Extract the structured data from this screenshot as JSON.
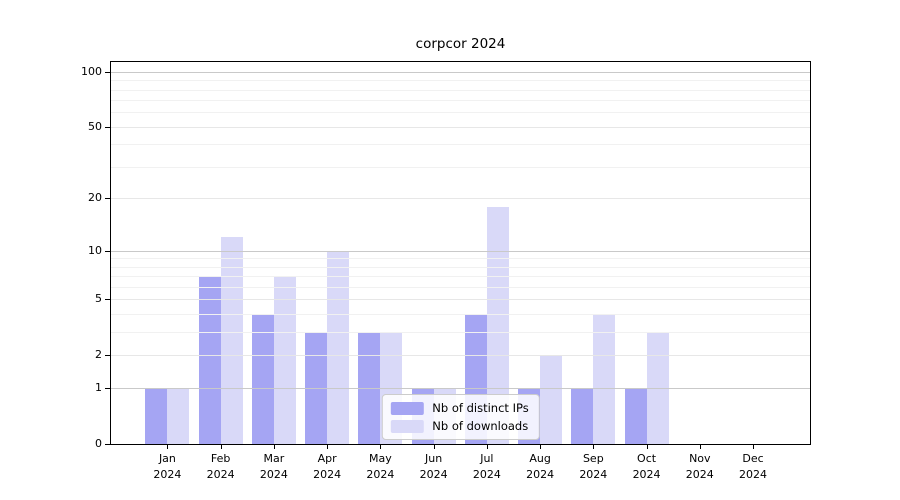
{
  "title": "corpcor 2024",
  "chart_data": {
    "type": "bar",
    "title": "corpcor 2024",
    "categories": [
      "Jan 2024",
      "Feb 2024",
      "Mar 2024",
      "Apr 2024",
      "May 2024",
      "Jun 2024",
      "Jul 2024",
      "Aug 2024",
      "Sep 2024",
      "Oct 2024",
      "Nov 2024",
      "Dec 2024"
    ],
    "series": [
      {
        "name": "Nb of distinct IPs",
        "values": [
          1,
          7,
          4,
          3,
          3,
          1,
          4,
          1,
          1,
          1,
          0,
          0
        ],
        "color": "#a5a5f3"
      },
      {
        "name": "Nb of downloads",
        "values": [
          1,
          12,
          7,
          10,
          3,
          1,
          18,
          2,
          4,
          3,
          0,
          0
        ],
        "color": "#d9d9f8"
      }
    ],
    "yscale": "log1p",
    "ylim": [
      0,
      113
    ],
    "yticks": [
      0,
      1,
      2,
      5,
      10,
      20,
      50,
      100
    ],
    "decade_ticks": [
      1,
      10,
      100
    ],
    "minor_ticks": [
      3,
      4,
      6,
      7,
      8,
      9,
      30,
      40,
      60,
      70,
      80,
      90
    ],
    "grid": true,
    "legend_position": "lower center"
  },
  "style": {
    "grid_decade_color": "#c9c9c9",
    "grid_major_color": "#e7e7e7",
    "grid_minor_color": "#f1f1f1",
    "axis_color": "#000000",
    "background": "#ffffff"
  }
}
